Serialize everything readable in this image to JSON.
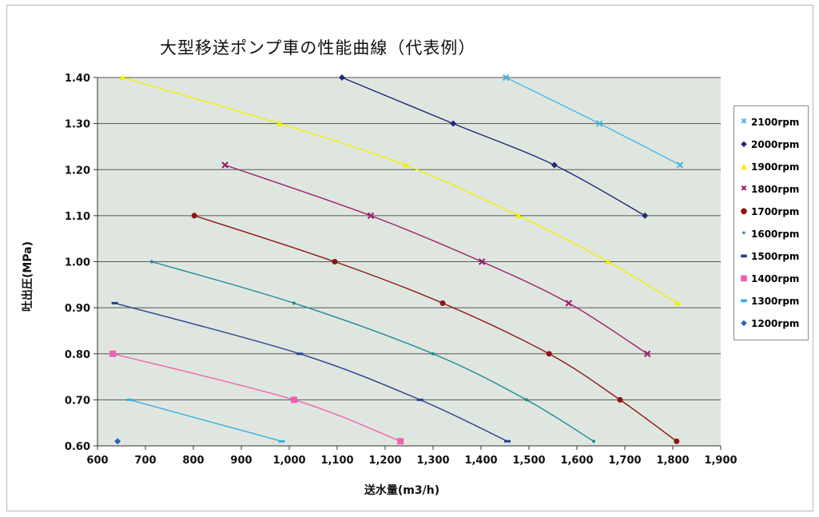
{
  "chart_data": {
    "type": "line",
    "title": "大型移送ポンプ車の性能曲線（代表例）",
    "xlabel": "送水量(m3/h)",
    "ylabel": "吐出圧(MPa)",
    "xlim": [
      600,
      1900
    ],
    "ylim": [
      0.6,
      1.4
    ],
    "x_ticks": [
      "600",
      "700",
      "800",
      "900",
      "1,000",
      "1,100",
      "1,200",
      "1,300",
      "1,400",
      "1,500",
      "1,600",
      "1,700",
      "1,800",
      "1,900"
    ],
    "y_ticks": [
      "0.60",
      "0.70",
      "0.80",
      "0.90",
      "1.00",
      "1.10",
      "1.20",
      "1.30",
      "1.40"
    ],
    "grid": "horizontal",
    "legend_position": "right",
    "series": [
      {
        "name": "2100rpm",
        "color": "#4ab8e0",
        "marker": "x-mark",
        "points": [
          [
            1452,
            1.4
          ],
          [
            1647,
            1.3
          ],
          [
            1815,
            1.21
          ]
        ]
      },
      {
        "name": "2000rpm",
        "color": "#1e2a78",
        "marker": "diamond",
        "points": [
          [
            1110,
            1.4
          ],
          [
            1342,
            1.3
          ],
          [
            1553,
            1.21
          ],
          [
            1742,
            1.1
          ]
        ]
      },
      {
        "name": "1900rpm",
        "color": "#f0f000",
        "marker": "triangle",
        "points": [
          [
            652,
            1.4
          ],
          [
            980,
            1.3
          ],
          [
            1242,
            1.21
          ],
          [
            1478,
            1.1
          ],
          [
            1665,
            1.0
          ],
          [
            1810,
            0.91
          ]
        ]
      },
      {
        "name": "1800rpm",
        "color": "#9e1f6e",
        "marker": "x-mark",
        "points": [
          [
            866,
            1.21
          ],
          [
            1170,
            1.1
          ],
          [
            1402,
            1.0
          ],
          [
            1583,
            0.91
          ],
          [
            1747,
            0.8
          ]
        ]
      },
      {
        "name": "1700rpm",
        "color": "#8b1515",
        "marker": "circle",
        "points": [
          [
            802,
            1.1
          ],
          [
            1095,
            1.0
          ],
          [
            1320,
            0.91
          ],
          [
            1542,
            0.8
          ],
          [
            1690,
            0.7
          ],
          [
            1808,
            0.61
          ]
        ]
      },
      {
        "name": "1600rpm",
        "color": "#1b8a96",
        "marker": "dot",
        "points": [
          [
            713,
            1.0
          ],
          [
            1010,
            0.91
          ],
          [
            1300,
            0.8
          ],
          [
            1495,
            0.7
          ],
          [
            1635,
            0.61
          ]
        ]
      },
      {
        "name": "1500rpm",
        "color": "#2a3f8f",
        "marker": "dash",
        "points": [
          [
            636,
            0.91
          ],
          [
            1022,
            0.8
          ],
          [
            1273,
            0.7
          ],
          [
            1455,
            0.61
          ]
        ]
      },
      {
        "name": "1400rpm",
        "color": "#f060b0",
        "marker": "square",
        "points": [
          [
            632,
            0.8
          ],
          [
            1010,
            0.7
          ],
          [
            1232,
            0.61
          ]
        ]
      },
      {
        "name": "1300rpm",
        "color": "#3aaee0",
        "marker": "dash",
        "points": [
          [
            667,
            0.7
          ],
          [
            984,
            0.61
          ]
        ]
      },
      {
        "name": "1200rpm",
        "color": "#2e63b0",
        "marker": "diamond",
        "points": [
          [
            642,
            0.61
          ]
        ]
      }
    ]
  },
  "legend_glyphs": {
    "x-mark": "✖",
    "diamond": "◆",
    "triangle": "▲",
    "circle": "●",
    "dot": "•",
    "dash": "▬",
    "square": "■"
  }
}
